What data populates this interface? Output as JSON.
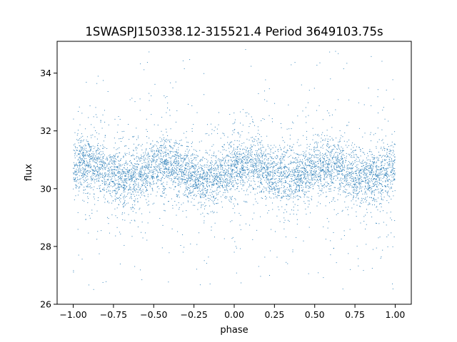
{
  "chart_data": {
    "type": "scatter",
    "title": "1SWASPJ150338.12-315521.4 Period 3649103.75s",
    "xlabel": "phase",
    "ylabel": "flux",
    "xlim": [
      -1.1,
      1.1
    ],
    "ylim": [
      26.0,
      35.1
    ],
    "xticks": [
      -1.0,
      -0.75,
      -0.5,
      -0.25,
      0.0,
      0.25,
      0.5,
      0.75,
      1.0
    ],
    "xtick_labels": [
      "−1.00",
      "−0.75",
      "−0.50",
      "−0.25",
      "0.00",
      "0.25",
      "0.50",
      "0.75",
      "1.00"
    ],
    "yticks": [
      26,
      28,
      30,
      32,
      34
    ],
    "ytick_labels": [
      "26",
      "28",
      "30",
      "32",
      "34"
    ],
    "grid": false,
    "series": [
      {
        "color": "#1f77b4",
        "x_range": [
          -1.0,
          1.0
        ],
        "flux_median": 30.6,
        "dense_band": [
          29.5,
          31.7
        ],
        "flux_min": 26.5,
        "flux_max": 34.9,
        "wave_amplitude": 0.25
      }
    ]
  }
}
